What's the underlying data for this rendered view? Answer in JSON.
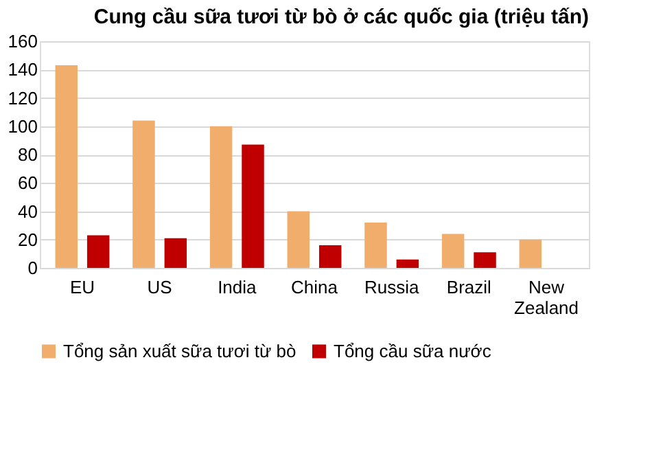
{
  "chart_data": {
    "type": "bar",
    "title": "Cung cầu sữa tươi từ bò ở các quốc gia (triệu tấn)",
    "categories": [
      "EU",
      "US",
      "India",
      "China",
      "Russia",
      "Brazil",
      "New Zealand"
    ],
    "series": [
      {
        "name": "Tổng sản xuất sữa tươi từ bò",
        "color": "#f0ad6b",
        "values": [
          143,
          104,
          100,
          40,
          32,
          24,
          20
        ]
      },
      {
        "name": "Tổng cầu sữa nước",
        "color": "#c00000",
        "values": [
          23,
          21,
          87,
          16,
          6,
          11,
          null
        ]
      }
    ],
    "ylim": [
      0,
      160
    ],
    "yticks": [
      0,
      20,
      40,
      60,
      80,
      100,
      120,
      140,
      160
    ],
    "grid": "y",
    "legend": "bottom"
  }
}
